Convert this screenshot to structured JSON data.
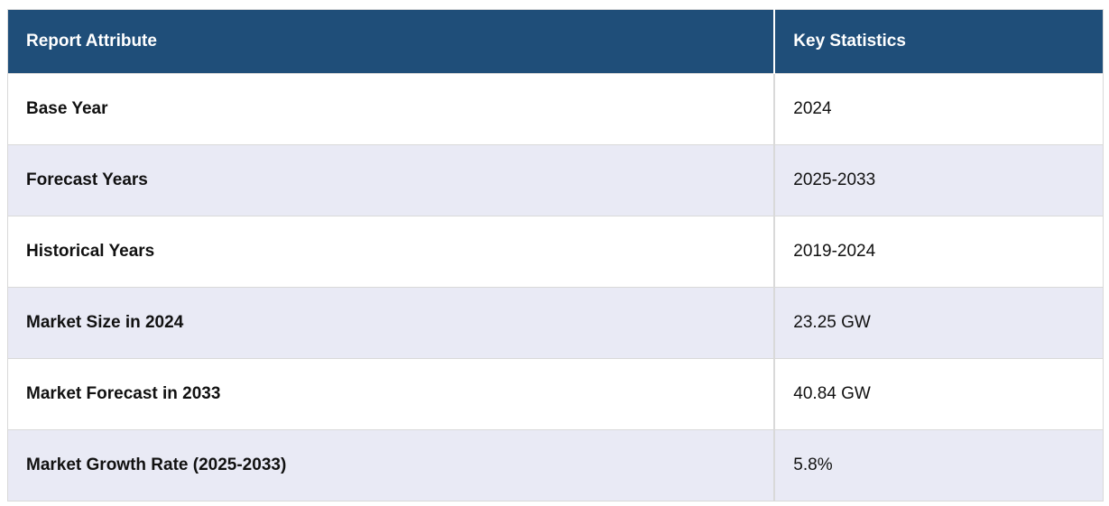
{
  "colors": {
    "header_bg": "#1F4E79",
    "header_text": "#FFFFFF",
    "header_divider": "#FFFFFF",
    "row_bg": "#FFFFFF",
    "row_alt_bg": "#E9EAF5",
    "border": "#D9D9D9",
    "body_text": "#111111"
  },
  "table": {
    "columns": {
      "attribute": "Report Attribute",
      "value": "Key Statistics"
    },
    "rows": [
      {
        "attribute": "Base Year",
        "value": "2024"
      },
      {
        "attribute": "Forecast Years",
        "value": "2025-2033"
      },
      {
        "attribute": "Historical Years",
        "value": "2019-2024"
      },
      {
        "attribute": "Market Size in 2024",
        "value": "23.25 GW"
      },
      {
        "attribute": "Market Forecast in 2033",
        "value": "40.84 GW"
      },
      {
        "attribute": "Market Growth Rate (2025-2033)",
        "value": "5.8%"
      }
    ]
  },
  "chart_data": {
    "type": "table",
    "title": "",
    "columns": [
      "Report Attribute",
      "Key Statistics"
    ],
    "rows": [
      [
        "Base Year",
        "2024"
      ],
      [
        "Forecast Years",
        "2025-2033"
      ],
      [
        "Historical Years",
        "2019-2024"
      ],
      [
        "Market Size in 2024",
        "23.25 GW"
      ],
      [
        "Market Forecast in 2033",
        "40.84 GW"
      ],
      [
        "Market Growth Rate (2025-2033)",
        "5.8%"
      ]
    ]
  }
}
